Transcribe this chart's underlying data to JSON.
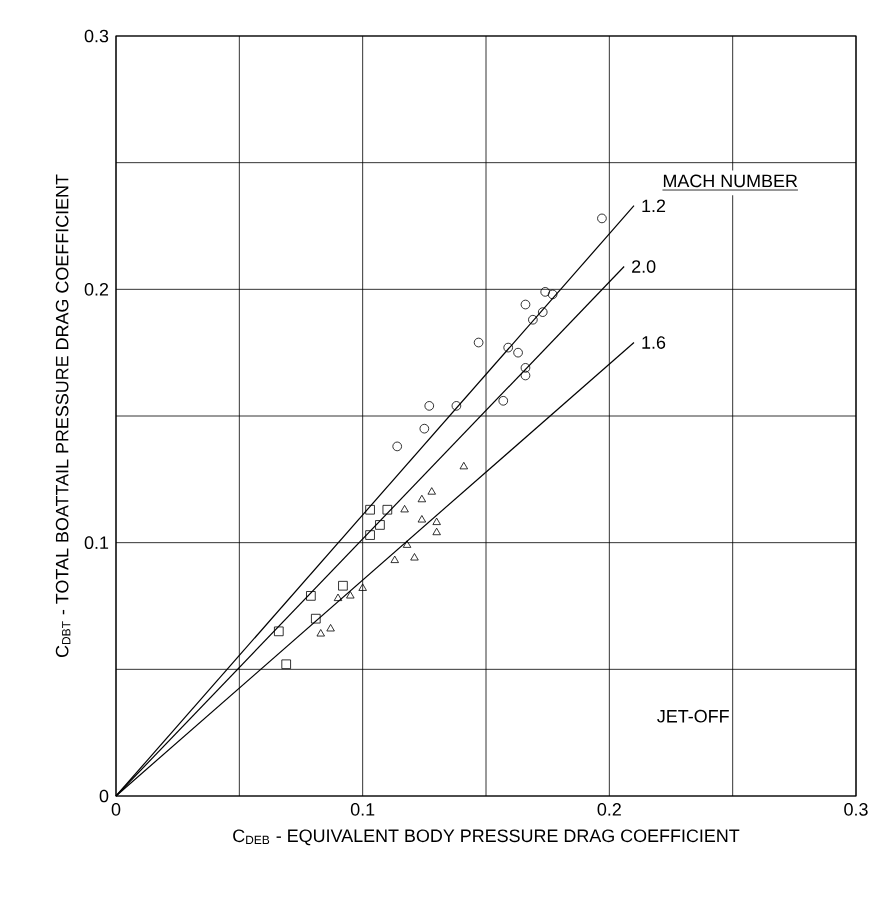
{
  "chart_data": {
    "type": "scatter",
    "xlabel": "C$_{DEB}$ - EQUIVALENT BODY PRESSURE DRAG COEFFICIENT",
    "ylabel": "C$_{DBT}$ - TOTAL BOATTAIL PRESSURE DRAG COEFFICIENT",
    "legend_title": "MACH NUMBER",
    "annotations": [
      "JET-OFF"
    ],
    "xlim": [
      0,
      0.3
    ],
    "ylim": [
      0,
      0.3
    ],
    "xticks": [
      0,
      {
        "value": 0.05,
        "label": null
      },
      0.1,
      {
        "value": 0.15,
        "label": null
      },
      0.2,
      {
        "value": 0.25,
        "label": null
      },
      0.3
    ],
    "yticks": [
      0,
      {
        "value": 0.05,
        "label": null
      },
      0.1,
      {
        "value": 0.15,
        "label": null
      },
      0.2,
      {
        "value": 0.25,
        "label": null
      },
      0.3
    ],
    "grid": true,
    "legend": false,
    "series": [
      {
        "marker": "circle",
        "color": "#000000",
        "x": [
          0.197,
          0.174,
          0.177,
          0.166,
          0.173,
          0.169,
          0.147,
          0.159,
          0.163,
          0.166,
          0.166,
          0.157,
          0.138,
          0.127,
          0.125,
          0.114
        ],
        "values": [
          0.228,
          0.199,
          0.198,
          0.194,
          0.191,
          0.188,
          0.179,
          0.177,
          0.175,
          0.169,
          0.166,
          0.156,
          0.154,
          0.154,
          0.145,
          0.138
        ]
      },
      {
        "marker": "square",
        "color": "#000000",
        "x": [
          0.103,
          0.11,
          0.107,
          0.103,
          0.092,
          0.079,
          0.081,
          0.066,
          0.069
        ],
        "values": [
          0.113,
          0.113,
          0.107,
          0.103,
          0.083,
          0.079,
          0.07,
          0.065,
          0.052
        ]
      },
      {
        "marker": "triangle",
        "color": "#000000",
        "x": [
          0.141,
          0.128,
          0.124,
          0.117,
          0.124,
          0.13,
          0.13,
          0.118,
          0.113,
          0.121,
          0.1,
          0.095,
          0.09,
          0.087,
          0.083
        ],
        "values": [
          0.13,
          0.12,
          0.117,
          0.113,
          0.109,
          0.108,
          0.104,
          0.099,
          0.093,
          0.094,
          0.082,
          0.079,
          0.078,
          0.066,
          0.064
        ]
      },
      {
        "type": "line",
        "name": "1.2",
        "color": "#000000",
        "line_style": "solid",
        "x": [
          0,
          0.21
        ],
        "values": [
          0,
          0.233
        ]
      },
      {
        "type": "line",
        "name": "2.0",
        "color": "#000000",
        "line_style": "solid",
        "x": [
          0,
          0.206
        ],
        "values": [
          0,
          0.209
        ]
      },
      {
        "type": "line",
        "name": "1.6",
        "color": "#000000",
        "line_style": "solid",
        "x": [
          0,
          0.21
        ],
        "values": [
          0,
          0.179
        ]
      }
    ]
  }
}
